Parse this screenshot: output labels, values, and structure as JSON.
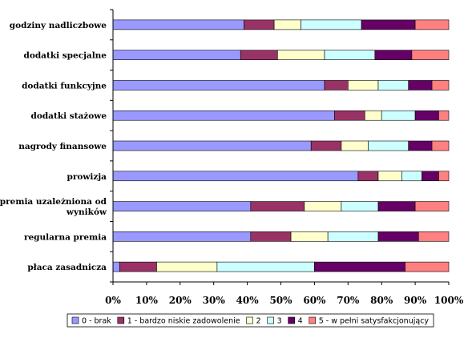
{
  "chart_data": {
    "type": "bar",
    "orientation": "horizontal",
    "stacked": true,
    "percent": true,
    "categories": [
      [
        "godziny nadliczbowe"
      ],
      [
        "dodatki specjalne"
      ],
      [
        "dodatki funkcyjne"
      ],
      [
        "dodatki stażowe"
      ],
      [
        "nagrody finansowe"
      ],
      [
        "prowizja"
      ],
      [
        "premia uzależniona od",
        "wyników"
      ],
      [
        "regularna premia"
      ],
      [
        "płaca zasadnicza"
      ]
    ],
    "series": [
      {
        "name": "0 - brak",
        "color": "#9999ff",
        "values": [
          39,
          38,
          63,
          66,
          59,
          73,
          41,
          41,
          2
        ]
      },
      {
        "name": "1 - bardzo niskie zadowolenie",
        "color": "#993366",
        "values": [
          9,
          11,
          7,
          9,
          9,
          6,
          16,
          12,
          11
        ]
      },
      {
        "name": "2",
        "color": "#ffffcc",
        "values": [
          8,
          14,
          9,
          5,
          8,
          7,
          11,
          11,
          18
        ]
      },
      {
        "name": "3",
        "color": "#ccffff",
        "values": [
          18,
          15,
          9,
          10,
          12,
          6,
          11,
          15,
          29
        ]
      },
      {
        "name": "4",
        "color": "#660066",
        "values": [
          16,
          11,
          7,
          7,
          7,
          5,
          11,
          12,
          27
        ]
      },
      {
        "name": "5 - w pełni satysfakcjonujący",
        "color": "#ff8080",
        "values": [
          10,
          11,
          5,
          3,
          5,
          3,
          10,
          9,
          13
        ]
      }
    ],
    "x_ticks": [
      "0%",
      "10%",
      "20%",
      "30%",
      "40%",
      "50%",
      "60%",
      "70%",
      "80%",
      "90%",
      "100%"
    ],
    "xlim": [
      0,
      100
    ],
    "grid": false,
    "legend_position": "bottom"
  }
}
